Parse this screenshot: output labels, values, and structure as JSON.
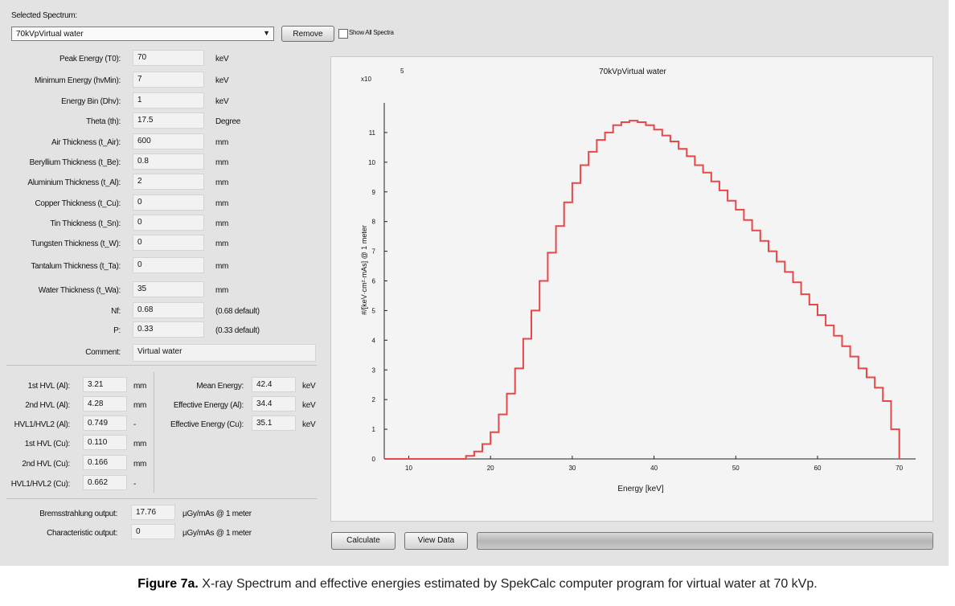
{
  "selector": {
    "label": "Selected Spectrum:",
    "value": "70kVpVirtual water",
    "remove_label": "Remove",
    "show_all_label": "Show All Spectra"
  },
  "params": [
    {
      "label": "Peak Energy (T0):",
      "value": "70",
      "unit": "keV"
    },
    {
      "label": "Minimum Energy (hvMin):",
      "value": "7",
      "unit": "keV"
    },
    {
      "label": "Energy Bin (Dhv):",
      "value": "1",
      "unit": "keV"
    },
    {
      "label": "Theta (th):",
      "value": "17.5",
      "unit": "Degree"
    },
    {
      "label": "Air Thickness (t_Air):",
      "value": "600",
      "unit": "mm"
    },
    {
      "label": "Beryllium Thickness (t_Be):",
      "value": "0.8",
      "unit": "mm"
    },
    {
      "label": "Aluminium Thickness (t_Al):",
      "value": "2",
      "unit": "mm"
    },
    {
      "label": "Copper Thickness (t_Cu):",
      "value": "0",
      "unit": "mm"
    },
    {
      "label": "Tin Thickness (t_Sn):",
      "value": "0",
      "unit": "mm"
    },
    {
      "label": "Tungsten Thickness (t_W):",
      "value": "0",
      "unit": "mm"
    },
    {
      "label": "Tantalum Thickness (t_Ta):",
      "value": "0",
      "unit": "mm"
    },
    {
      "label": "Water Thickness (t_Wa):",
      "value": "35",
      "unit": "mm"
    },
    {
      "label": "Nf:",
      "value": "0.68",
      "unit": "(0.68 default)"
    },
    {
      "label": "P:",
      "value": "0.33",
      "unit": "(0.33 default)"
    }
  ],
  "comment": {
    "label": "Comment:",
    "value": "Virtual water"
  },
  "hvl": [
    {
      "label": "1st HVL (Al):",
      "value": "3.21",
      "unit": "mm"
    },
    {
      "label": "2nd HVL (Al):",
      "value": "4.28",
      "unit": "mm"
    },
    {
      "label": "HVL1/HVL2 (Al):",
      "value": "0.749",
      "unit": "-"
    },
    {
      "label": "1st HVL (Cu):",
      "value": "0.110",
      "unit": "mm"
    },
    {
      "label": "2nd HVL (Cu):",
      "value": "0.166",
      "unit": "mm"
    },
    {
      "label": "HVL1/HVL2 (Cu):",
      "value": "0.662",
      "unit": "-"
    }
  ],
  "energies": [
    {
      "label": "Mean Energy:",
      "value": "42.4",
      "unit": "keV"
    },
    {
      "label": "Effective Energy (Al):",
      "value": "34.4",
      "unit": "keV"
    },
    {
      "label": "Effective Energy (Cu):",
      "value": "35.1",
      "unit": "keV"
    }
  ],
  "outputs": [
    {
      "label": "Bremsstrahlung output:",
      "value": "17.76",
      "unit": "µGy/mAs @ 1 meter"
    },
    {
      "label": "Characteristic output:",
      "value": "0",
      "unit": "µGy/mAs @ 1 meter"
    }
  ],
  "buttons": {
    "calculate": "Calculate",
    "view_data": "View Data"
  },
  "progress": 0,
  "caption": {
    "bold": "Figure 7a.",
    "text": " X-ray Spectrum and effective energies estimated by SpekCalc computer program for virtual water at 70 kVp."
  },
  "colors": {
    "curve": "#e8474a",
    "panel": "#e3e3e3"
  },
  "chart_data": {
    "type": "line",
    "step": true,
    "title": "70kVpVirtual water",
    "xlabel": "Energy [keV]",
    "ylabel": "#/[keV·cm²·mAs] @ 1 meter",
    "y_multiplier_base": "x10",
    "y_multiplier_exp": "5",
    "xlim": [
      7,
      72
    ],
    "ylim": [
      0,
      12
    ],
    "xticks": [
      10,
      20,
      30,
      40,
      50,
      60,
      70
    ],
    "yticks": [
      0,
      1,
      2,
      3,
      4,
      5,
      6,
      7,
      8,
      9,
      10,
      11
    ],
    "series": [
      {
        "name": "70kVpVirtual water",
        "x": [
          7,
          8,
          9,
          10,
          11,
          12,
          13,
          14,
          15,
          16,
          17,
          18,
          19,
          20,
          21,
          22,
          23,
          24,
          25,
          26,
          27,
          28,
          29,
          30,
          31,
          32,
          33,
          34,
          35,
          36,
          37,
          38,
          39,
          40,
          41,
          42,
          43,
          44,
          45,
          46,
          47,
          48,
          49,
          50,
          51,
          52,
          53,
          54,
          55,
          56,
          57,
          58,
          59,
          60,
          61,
          62,
          63,
          64,
          65,
          66,
          67,
          68,
          69,
          70
        ],
        "values": [
          0,
          0,
          0,
          0,
          0,
          0,
          0,
          0,
          0,
          0,
          0.1,
          0.25,
          0.5,
          0.9,
          1.5,
          2.2,
          3.05,
          4.05,
          5.0,
          6.0,
          6.95,
          7.85,
          8.65,
          9.3,
          9.9,
          10.35,
          10.75,
          11.0,
          11.25,
          11.35,
          11.4,
          11.35,
          11.25,
          11.1,
          10.9,
          10.7,
          10.45,
          10.2,
          9.9,
          9.65,
          9.35,
          9.05,
          8.7,
          8.4,
          8.05,
          7.7,
          7.35,
          7.0,
          6.65,
          6.3,
          5.95,
          5.55,
          5.2,
          4.85,
          4.5,
          4.15,
          3.8,
          3.45,
          3.05,
          2.75,
          2.4,
          1.95,
          1.0,
          0
        ]
      }
    ]
  }
}
